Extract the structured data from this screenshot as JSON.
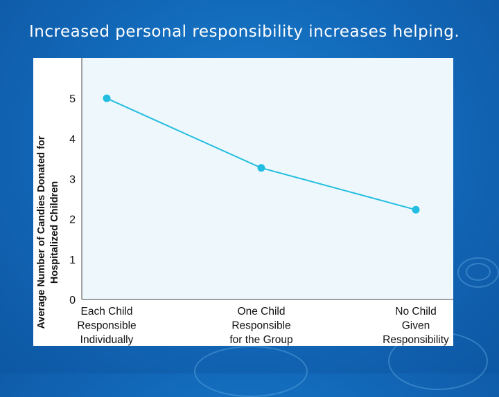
{
  "slide": {
    "title": "Increased personal responsibility increases helping."
  },
  "colors": {
    "background": "#1267b7",
    "plot_fill": "#eef8fc",
    "series_line": "#22bde0",
    "series_point": "#22bde0"
  },
  "chart_data": {
    "type": "line",
    "categories": [
      [
        "Each Child",
        "Responsible",
        "Individually"
      ],
      [
        "One Child",
        "Responsible",
        "for the Group"
      ],
      [
        "No Child",
        "Given",
        "Responsibility"
      ]
    ],
    "series": [
      {
        "values": [
          5.0,
          3.27,
          2.23
        ]
      }
    ],
    "ylabel": [
      "Average Number of Candies Donated for",
      "Hospitalized Children"
    ],
    "ylim": [
      0,
      6
    ],
    "yticks": [
      0,
      1,
      2,
      3,
      4,
      5
    ],
    "grid": false
  }
}
